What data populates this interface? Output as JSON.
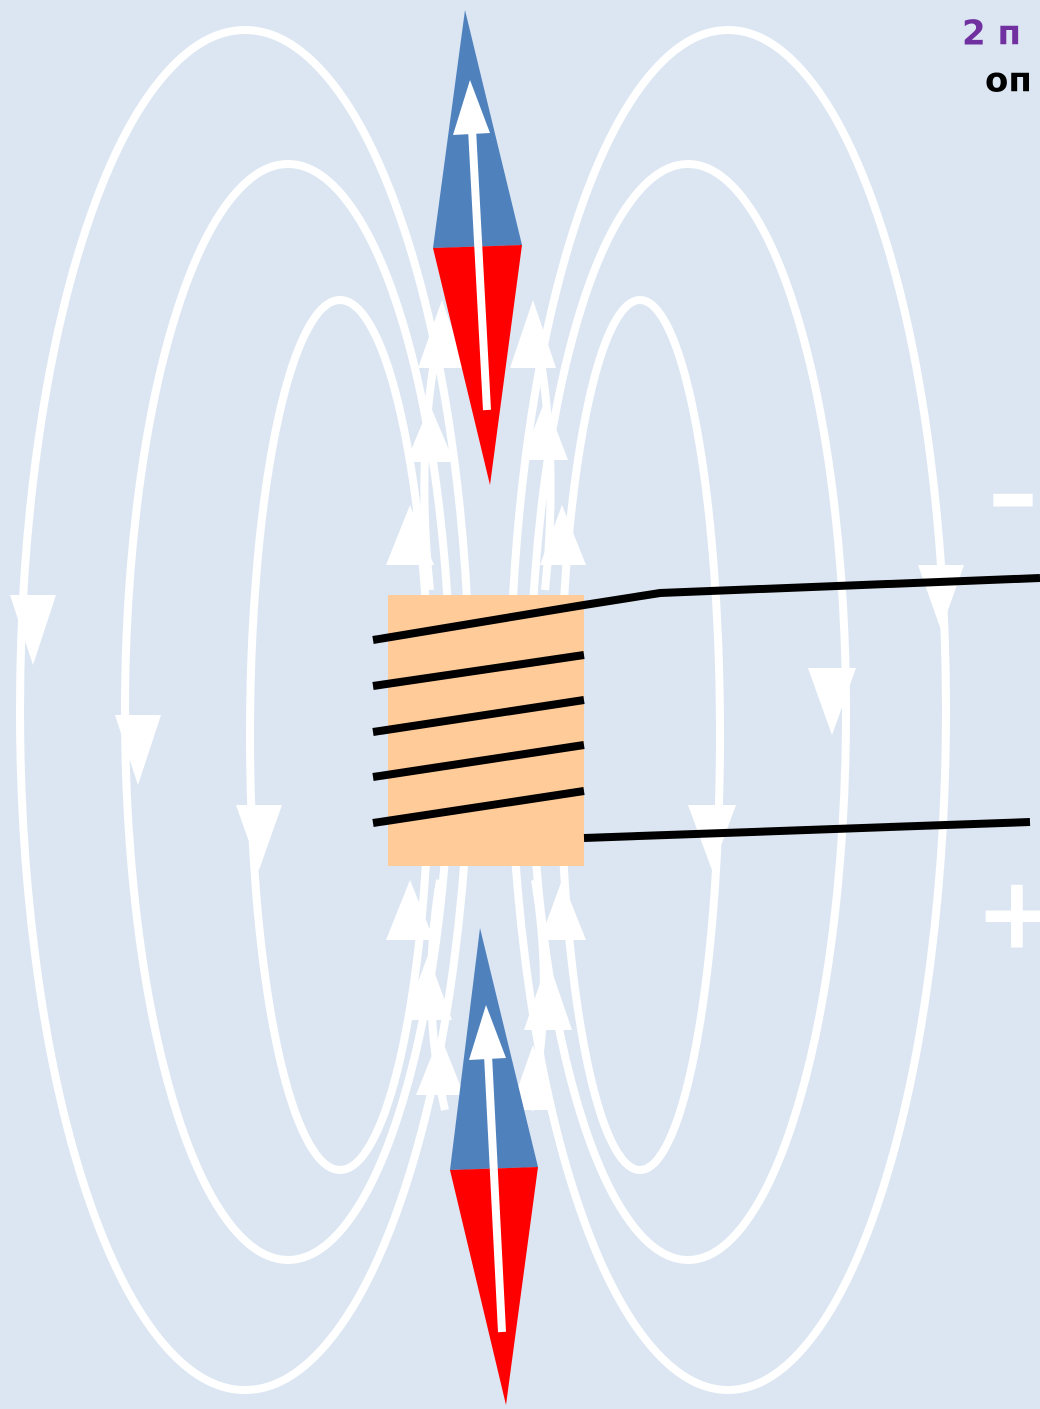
{
  "heading": {
    "line1": "2 п",
    "line2": "оп"
  },
  "terminals": {
    "minus": "–",
    "plus": "+"
  }
}
